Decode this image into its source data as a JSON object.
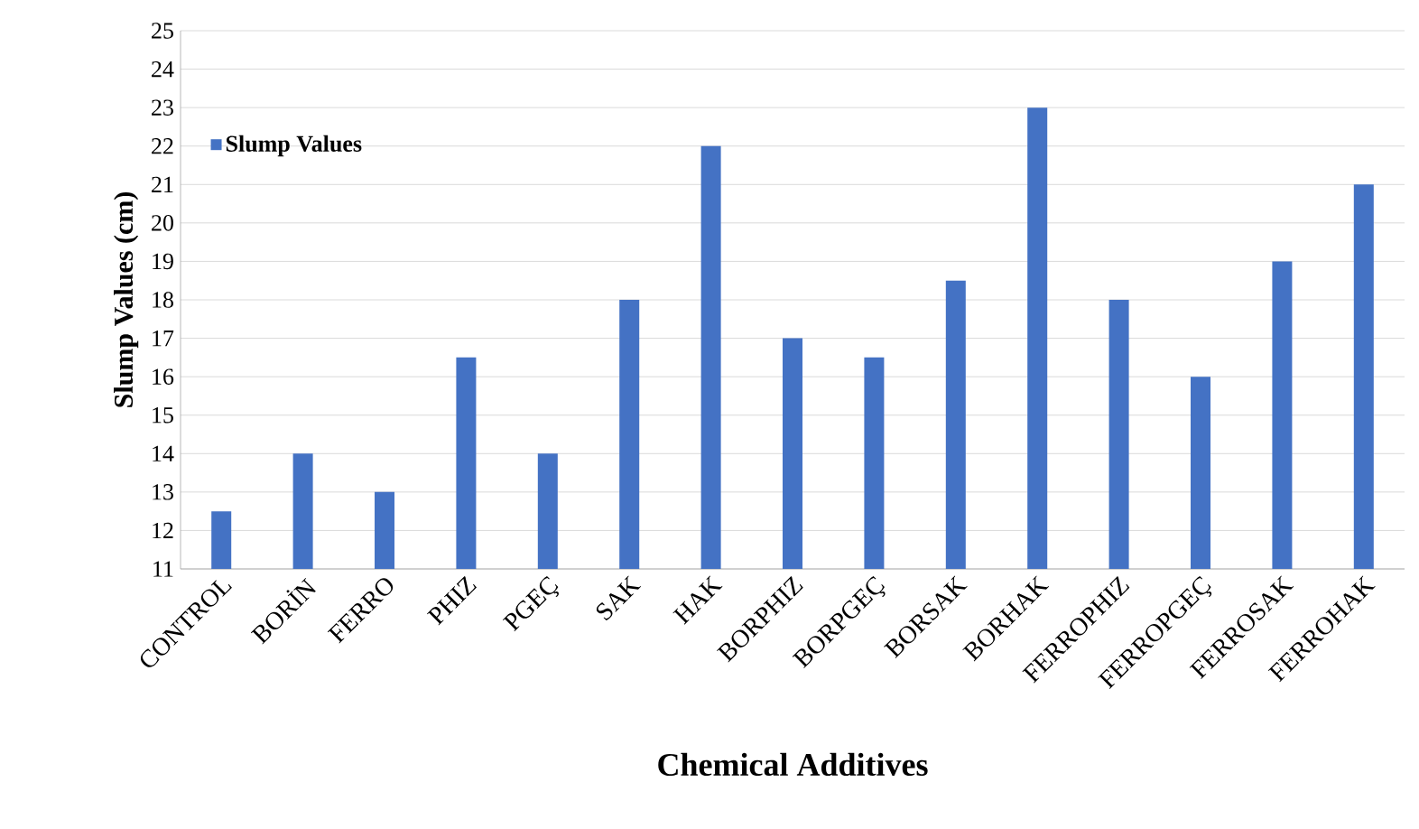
{
  "chart_data": {
    "type": "bar",
    "xlabel": "Chemical Additives",
    "ylabel": "Slump Values (cm)",
    "categories": [
      "CONTROL",
      "BORİN",
      "FERRO",
      "PHIZ",
      "PGEÇ",
      "SAK",
      "HAK",
      "BORPHIZ",
      "BORPGEÇ",
      "BORSAK",
      "BORHAK",
      "FERROPHIZ",
      "FERROPGEÇ",
      "FERROSAK",
      "FERROHAK"
    ],
    "series": [
      {
        "name": "Slump Values",
        "color": "#4472c4",
        "values": [
          12.5,
          14,
          13,
          16.5,
          14,
          18,
          22,
          17,
          16.5,
          18.5,
          23,
          18,
          16,
          19,
          21
        ]
      }
    ],
    "ylim": [
      11,
      25
    ],
    "yticks": [
      11,
      12,
      13,
      14,
      15,
      16,
      17,
      18,
      19,
      20,
      21,
      22,
      23,
      24,
      25
    ],
    "grid": "y",
    "legend": "top left"
  }
}
